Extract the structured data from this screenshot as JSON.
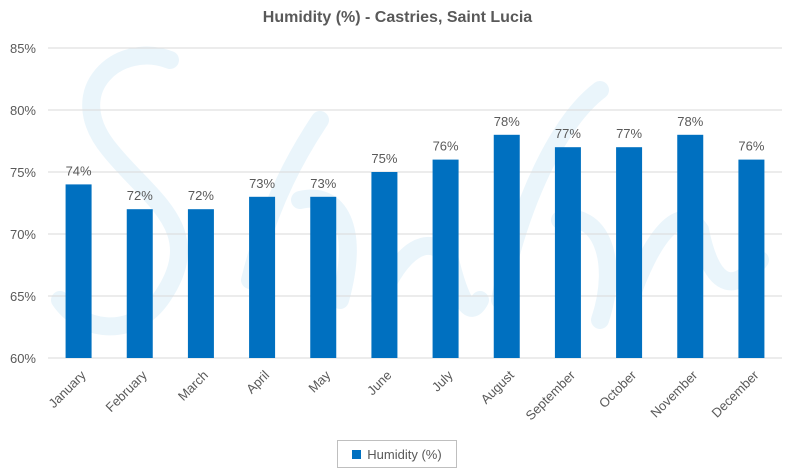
{
  "colors": {
    "bar": "#0070c0",
    "grid": "#d9d9d9",
    "text": "#595959",
    "watermark": "#eaf5fb"
  },
  "chart_data": {
    "type": "bar",
    "title": "Humidity (%) - Castries, Saint Lucia",
    "categories": [
      "January",
      "February",
      "March",
      "April",
      "May",
      "June",
      "July",
      "August",
      "September",
      "October",
      "November",
      "December"
    ],
    "series": [
      {
        "name": "Humidity (%)",
        "values": [
          74,
          72,
          72,
          73,
          73,
          75,
          76,
          78,
          77,
          77,
          78,
          76
        ]
      }
    ],
    "data_labels": [
      "74%",
      "72%",
      "72%",
      "73%",
      "73%",
      "75%",
      "76%",
      "78%",
      "77%",
      "77%",
      "78%",
      "76%"
    ],
    "ylim": [
      60,
      85
    ],
    "yticks": [
      60,
      65,
      70,
      75,
      80,
      85
    ],
    "ytick_labels": [
      "60%",
      "65%",
      "70%",
      "75%",
      "80%",
      "85%"
    ],
    "grid": true,
    "legend_position": "bottom"
  }
}
